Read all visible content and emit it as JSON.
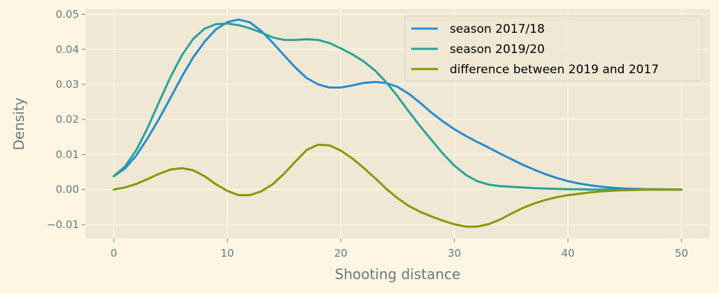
{
  "chart_data": {
    "type": "line",
    "xlabel": "Shooting distance",
    "ylabel": "Density",
    "xlim": [
      -2.5,
      52.5
    ],
    "ylim": [
      -0.014,
      0.0515
    ],
    "x_ticks": [
      0,
      10,
      20,
      30,
      40,
      50
    ],
    "y_ticks": [
      -0.01,
      0.0,
      0.01,
      0.02,
      0.03,
      0.04,
      0.05
    ],
    "y_tick_labels": [
      "−0.01",
      "0.00",
      "0.01",
      "0.02",
      "0.03",
      "0.04",
      "0.05"
    ],
    "grid": true,
    "legend_position": "top-right",
    "x": [
      0,
      1,
      2,
      3,
      4,
      5,
      6,
      7,
      8,
      9,
      10,
      11,
      12,
      13,
      14,
      15,
      16,
      17,
      18,
      19,
      20,
      21,
      22,
      23,
      24,
      25,
      26,
      27,
      28,
      29,
      30,
      31,
      32,
      33,
      34,
      35,
      36,
      37,
      38,
      39,
      40,
      41,
      42,
      43,
      44,
      45,
      46,
      47,
      48,
      49,
      50
    ],
    "series": [
      {
        "name": "season 2017/18",
        "color": "#268bd2",
        "values": [
          0.0038,
          0.006,
          0.0098,
          0.0147,
          0.0202,
          0.0262,
          0.0322,
          0.0377,
          0.0422,
          0.0457,
          0.0478,
          0.0485,
          0.0477,
          0.0452,
          0.0419,
          0.0383,
          0.0348,
          0.0318,
          0.03,
          0.0291,
          0.0291,
          0.0297,
          0.0304,
          0.0307,
          0.0304,
          0.0293,
          0.0273,
          0.0247,
          0.0219,
          0.0194,
          0.0172,
          0.0153,
          0.0136,
          0.012,
          0.0103,
          0.0087,
          0.0071,
          0.0057,
          0.0044,
          0.0033,
          0.0024,
          0.0017,
          0.0012,
          0.0008,
          0.0005,
          0.0003,
          0.0002,
          0.0001,
          0.0001,
          0.0,
          0.0
        ]
      },
      {
        "name": "season 2019/20",
        "color": "#2aa198",
        "values": [
          0.0038,
          0.0066,
          0.0113,
          0.0177,
          0.025,
          0.0321,
          0.0383,
          0.043,
          0.0459,
          0.0472,
          0.0474,
          0.0469,
          0.046,
          0.0448,
          0.0434,
          0.0427,
          0.0427,
          0.0429,
          0.0427,
          0.0418,
          0.0403,
          0.0386,
          0.0366,
          0.034,
          0.0306,
          0.0266,
          0.0222,
          0.018,
          0.0141,
          0.0102,
          0.0068,
          0.0042,
          0.0024,
          0.0014,
          0.001,
          0.0008,
          0.0006,
          0.0004,
          0.0003,
          0.0002,
          0.0001,
          0.0001,
          0.0,
          0.0,
          0.0,
          0.0,
          0.0,
          0.0,
          0.0,
          0.0,
          0.0
        ]
      },
      {
        "name": "difference between 2019 and 2017",
        "color": "#859900",
        "values": [
          0.0,
          0.0006,
          0.0016,
          0.003,
          0.0045,
          0.0057,
          0.0061,
          0.0055,
          0.0038,
          0.0015,
          -0.0004,
          -0.0016,
          -0.0016,
          -0.0005,
          0.0015,
          0.0045,
          0.008,
          0.0113,
          0.0128,
          0.0126,
          0.0111,
          0.0089,
          0.0062,
          0.0033,
          0.0002,
          -0.0025,
          -0.0047,
          -0.0064,
          -0.0077,
          -0.0089,
          -0.0099,
          -0.0106,
          -0.0106,
          -0.0099,
          -0.0086,
          -0.0069,
          -0.0053,
          -0.004,
          -0.003,
          -0.0022,
          -0.0016,
          -0.0012,
          -0.0008,
          -0.0005,
          -0.0003,
          -0.0002,
          -0.0001,
          0.0,
          0.0,
          0.0,
          0.0
        ]
      }
    ]
  },
  "colors": {
    "figure_background": "#fdf6e3",
    "plot_background": "#eee8d5",
    "grid": "#fdf6e3",
    "tick_text": "#657b83"
  }
}
